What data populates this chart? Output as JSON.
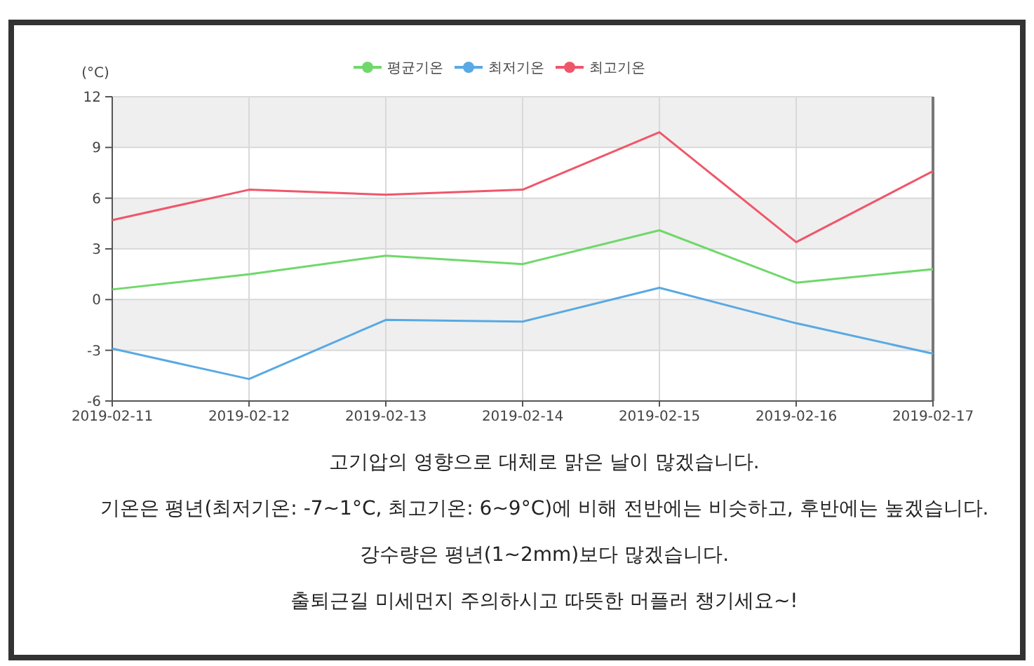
{
  "chart_data": {
    "type": "line",
    "ylabel": "(°C)",
    "categories": [
      "2019-02-11",
      "2019-02-12",
      "2019-02-13",
      "2019-02-14",
      "2019-02-15",
      "2019-02-16",
      "2019-02-17"
    ],
    "series": [
      {
        "name": "평균기온",
        "color": "#6fd86a",
        "values": [
          0.6,
          1.5,
          2.6,
          2.1,
          4.1,
          1.0,
          1.8
        ]
      },
      {
        "name": "최저기온",
        "color": "#58a9e4",
        "values": [
          -2.9,
          -4.7,
          -1.2,
          -1.3,
          0.7,
          -1.4,
          -3.2
        ]
      },
      {
        "name": "최고기온",
        "color": "#f0566a",
        "values": [
          4.7,
          6.5,
          6.2,
          6.5,
          9.9,
          3.4,
          7.6
        ]
      }
    ],
    "ylim": [
      -6,
      12
    ],
    "yticks": [
      -6,
      -3,
      0,
      3,
      6,
      9,
      12
    ],
    "grid": true,
    "legend": "top",
    "annotations": [
      "고기압의 영향으로 대체로 맑은 날이 많겠습니다.",
      "기온은 평년(최저기온: -7~1°C, 최고기온: 6~9°C)에 비해 전반에는 비슷하고, 후반에는 높겠습니다.",
      "강수량은 평년(1~2mm)보다 많겠습니다.",
      "출퇴근길 미세먼지 주의하시고 따뜻한 머플러 챙기세요~!"
    ]
  }
}
